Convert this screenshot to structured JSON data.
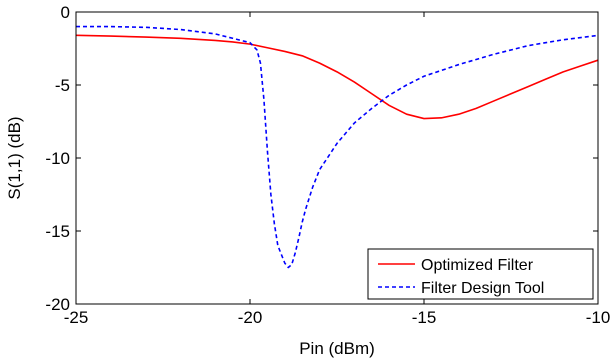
{
  "chart_data": {
    "type": "line",
    "title": "",
    "xlabel": "Pin (dBm)",
    "ylabel": "S(1,1) (dB)",
    "xlim": [
      -25,
      -10
    ],
    "ylim": [
      -20,
      0
    ],
    "xticks": [
      -25,
      -20,
      -15,
      -10
    ],
    "yticks": [
      0,
      -5,
      -10,
      -15,
      -20
    ],
    "xtick_labels": [
      "-25",
      "-20",
      "-15",
      "-10"
    ],
    "ytick_labels": [
      "0",
      "-5",
      "-10",
      "-15",
      "-20"
    ],
    "grid": false,
    "legend_position": "bottom-right",
    "series": [
      {
        "name": "Optimized Filter",
        "color": "#ff0000",
        "style": "solid",
        "x": [
          -25,
          -24,
          -23,
          -22,
          -21,
          -20.5,
          -20,
          -19.5,
          -19,
          -18.5,
          -18,
          -17.5,
          -17,
          -16.5,
          -16,
          -15.5,
          -15,
          -14.5,
          -14,
          -13.5,
          -13,
          -12.5,
          -12,
          -11.5,
          -11,
          -10.5,
          -10
        ],
        "y": [
          -1.6,
          -1.65,
          -1.72,
          -1.8,
          -1.95,
          -2.05,
          -2.2,
          -2.45,
          -2.7,
          -3.0,
          -3.5,
          -4.1,
          -4.8,
          -5.6,
          -6.4,
          -7.0,
          -7.3,
          -7.25,
          -7.0,
          -6.6,
          -6.1,
          -5.6,
          -5.1,
          -4.6,
          -4.1,
          -3.7,
          -3.3
        ]
      },
      {
        "name": "Filter Design Tool",
        "color": "#0000ff",
        "style": "dashed",
        "x": [
          -25,
          -24,
          -23,
          -22,
          -21,
          -20.5,
          -20,
          -19.8,
          -19.7,
          -19.6,
          -19.5,
          -19.4,
          -19.3,
          -19.2,
          -19.0,
          -18.9,
          -18.8,
          -18.7,
          -18.6,
          -18.5,
          -18.4,
          -18.2,
          -18.0,
          -17.5,
          -17,
          -16.5,
          -16,
          -15.5,
          -15,
          -14,
          -13,
          -12,
          -11,
          -10
        ],
        "y": [
          -1.0,
          -1.0,
          -1.05,
          -1.2,
          -1.5,
          -1.8,
          -2.1,
          -2.6,
          -3.5,
          -6.0,
          -9.5,
          -12.5,
          -14.5,
          -16.0,
          -17.2,
          -17.5,
          -17.3,
          -16.5,
          -15.5,
          -14.4,
          -13.5,
          -12.0,
          -10.8,
          -9.0,
          -7.6,
          -6.6,
          -5.7,
          -5.0,
          -4.4,
          -3.6,
          -2.9,
          -2.3,
          -1.9,
          -1.6
        ]
      }
    ]
  }
}
